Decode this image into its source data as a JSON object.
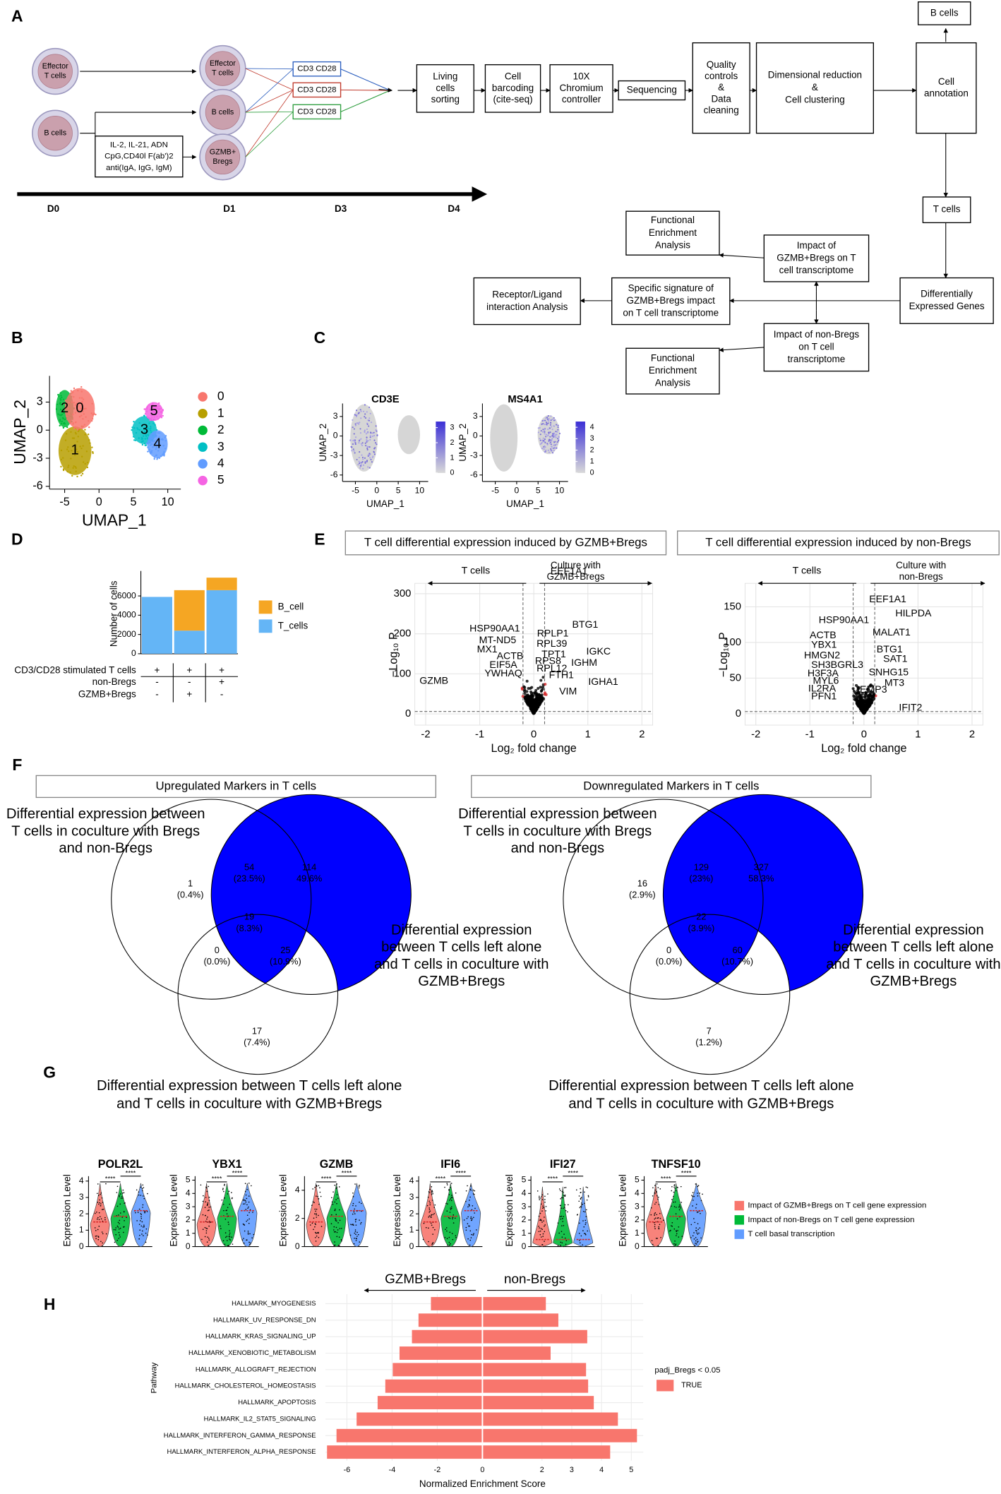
{
  "panel_labels": [
    "A",
    "B",
    "C",
    "D",
    "E",
    "F",
    "G",
    "H"
  ],
  "panel_a": {
    "cells": [
      [
        "Effector",
        "T cells"
      ],
      [
        "B cells"
      ],
      [
        "Effector",
        "T cells"
      ],
      [
        "B cells"
      ],
      [
        "GZMB+",
        "Bregs"
      ]
    ],
    "stimulation": [
      "IL-2, IL-21, ADN",
      "CpG,CD40l F(ab')2",
      "anti(IgA, IgG, IgM)"
    ],
    "cd_boxes": [
      "CD3 CD28",
      "CD3 CD28",
      "CD3 CD28"
    ],
    "timeline": [
      "D0",
      "D1",
      "D3",
      "D4"
    ],
    "steps": [
      [
        "Living",
        "cells",
        "sorting"
      ],
      [
        "Cell",
        "barcoding",
        "(cite-seq)"
      ],
      [
        "10X",
        "Chromium",
        "controller"
      ],
      [
        "Sequencing"
      ],
      [
        "Quality",
        "controls",
        "&",
        "Data",
        "cleaning"
      ],
      [
        "Dimensional reduction",
        "&",
        "Cell clustering"
      ],
      [
        "Cell",
        "annotation"
      ]
    ],
    "b_cells": "B cells",
    "t_cells": "T cells",
    "deg": [
      "Differentially",
      "Expressed Genes"
    ],
    "impact_gzmb": [
      "Impact of",
      "GZMB+Bregs on T",
      "cell transcriptome"
    ],
    "impact_non": [
      "Impact of non-Bregs",
      "on T cell",
      "transcriptome"
    ],
    "signature": [
      "Specific signature of",
      "GZMB+Bregs impact",
      "on T cell transcriptome"
    ],
    "receptor": [
      "Receptor/Ligand",
      "interaction Analysis"
    ],
    "functional": [
      [
        "Functional",
        "Enrichment",
        "Analysis"
      ],
      [
        "Functional",
        "Enrichment",
        "Analysis"
      ]
    ]
  },
  "panel_b": {
    "xlabel": "UMAP_1",
    "ylabel": "UMAP_2",
    "xlim": [
      -7.2,
      11.9
    ],
    "ylim": [
      -6.3,
      5.8
    ],
    "xticks": [
      -5,
      0,
      5,
      10
    ],
    "yticks": [
      -6,
      -3,
      0,
      3
    ],
    "clusters": [
      "0",
      "1",
      "2",
      "3",
      "4",
      "5"
    ],
    "colors": [
      "#F8766D",
      "#B79F00",
      "#00BA38",
      "#00BFC4",
      "#619CFF",
      "#F564E3"
    ]
  },
  "panel_c": {
    "xlabel": "UMAP_1",
    "ylabel": "UMAP_2",
    "xlim": [
      -8,
      12
    ],
    "ylim": [
      -7,
      5
    ],
    "xticks": [
      -5,
      0,
      5,
      10
    ],
    "yticks": [
      -6,
      -3,
      0,
      3
    ],
    "features": [
      {
        "name": "CD3E",
        "clim": [
          0,
          3.4
        ],
        "cticks": [
          0,
          1,
          2,
          3
        ]
      },
      {
        "name": "MS4A1",
        "clim": [
          0,
          4.5
        ],
        "cticks": [
          0,
          1,
          2,
          3,
          4
        ]
      }
    ]
  },
  "panel_d": {
    "type": "bar",
    "ylabel": "Number of cells",
    "ylim": [
      0,
      8200
    ],
    "yticks": [
      0,
      2000,
      4000,
      6000
    ],
    "series": [
      {
        "name": "B_cell",
        "color": "#F5A623",
        "values": [
          0,
          4200,
          1300
        ]
      },
      {
        "name": "T_cells",
        "color": "#64B5F6",
        "values": [
          5900,
          2400,
          6600
        ]
      }
    ],
    "conditions": [
      "CD3/CD28 stimulated T cells",
      "non-Bregs",
      "GZMB+Bregs"
    ],
    "signs": [
      [
        "+",
        "+",
        "+"
      ],
      [
        "-",
        "-",
        "+"
      ],
      [
        "-",
        "+",
        "-"
      ]
    ]
  },
  "panel_e": {
    "ylabel": "−Log₁₀ P",
    "xlabel": "Log₂ fold change",
    "plots": [
      {
        "title": "T cell differential expression induced by GZMB+Bregs",
        "left": "T cells",
        "right": [
          "Culture with",
          "GZMB+Bregs"
        ],
        "xlim": [
          -2.2,
          2.2
        ],
        "xticks": [
          -2,
          -1,
          0,
          1,
          2
        ],
        "ylim": [
          -28,
          326
        ],
        "yticks": [
          0,
          100,
          200,
          300
        ],
        "genes": [
          "EEF1A1",
          "BTG1",
          "HSP90AA1",
          "RPLP1",
          "MT-ND5",
          "RPL39",
          "IGKC",
          "MX1",
          "TPT1",
          "GZMB",
          "ACTB",
          "RPS8",
          "IGHM",
          "RPL12",
          "EIF5A",
          "YWHAQ",
          "FTH1",
          "IGHA1",
          "VIM"
        ]
      },
      {
        "title": "T cell differential expression induced by non-Bregs",
        "left": "T cells",
        "right": [
          "Culture with",
          "non-Bregs"
        ],
        "xlim": [
          -2.2,
          2.2
        ],
        "xticks": [
          -2,
          -1,
          0,
          1,
          2
        ],
        "ylim": [
          -16,
          183
        ],
        "yticks": [
          0,
          50,
          100,
          150
        ],
        "genes": [
          "EEF1A1",
          "HILPDA",
          "HSP90AA1",
          "MALAT1",
          "ACTB",
          "YBX1",
          "BTG1",
          "HMGN2",
          "SAT1",
          "SH3BGRL3",
          "SNHG15",
          "H3F3A",
          "MT3",
          "MYL6",
          "IL2RA",
          "EMP3",
          "PFN1",
          "IFIT2"
        ]
      }
    ]
  },
  "panel_f": {
    "venns": [
      {
        "title": "Upregulated Markers in T cells",
        "regions": [
          {
            "count": 1,
            "percent": "(0.4%)"
          },
          {
            "count": 54,
            "percent": "(23.5%)"
          },
          {
            "count": 114,
            "percent": "49.6%"
          },
          {
            "count": 19,
            "percent": "(8.3%)"
          },
          {
            "count": 0,
            "percent": "(0.0%)"
          },
          {
            "count": 25,
            "percent": "(10.9%)"
          },
          {
            "count": 17,
            "percent": "(7.4%)"
          }
        ]
      },
      {
        "title": "Downregulated Markers in T cells",
        "regions": [
          {
            "count": 16,
            "percent": "(2.9%)"
          },
          {
            "count": 129,
            "percent": "(23%)"
          },
          {
            "count": 327,
            "percent": "58.3%"
          },
          {
            "count": 22,
            "percent": "(3.9%)"
          },
          {
            "count": 0,
            "percent": "(0.0%)"
          },
          {
            "count": 60,
            "percent": "(10.7%)"
          },
          {
            "count": 7,
            "percent": "(1.2%)"
          }
        ]
      }
    ],
    "set_a": [
      "Differential expression between",
      "T cells in coculture with Bregs",
      "and non-Bregs"
    ],
    "set_b": [
      "Differential expression",
      "between T cells left alone",
      "and T cells in coculture with",
      "GZMB+Bregs"
    ],
    "set_c": [
      "Differential expression between T cells left alone",
      "and T cells in coculture with GZMB+Bregs"
    ]
  },
  "panel_g": {
    "ylabel": "Expression Level",
    "significance": "****",
    "plots": [
      {
        "gene": "POLR2L",
        "ylim": [
          0,
          4.3
        ],
        "yticks": [
          0,
          1,
          2,
          3,
          4
        ]
      },
      {
        "gene": "YBX1",
        "ylim": [
          0,
          5.3
        ],
        "yticks": [
          0,
          1,
          2,
          3,
          4,
          5
        ]
      },
      {
        "gene": "GZMB",
        "ylim": [
          0,
          5
        ],
        "yticks": [
          0,
          2,
          4
        ]
      },
      {
        "gene": "IFI6",
        "ylim": [
          0,
          4.3
        ],
        "yticks": [
          0,
          1,
          2,
          3,
          4
        ]
      },
      {
        "gene": "IFI27",
        "ylim": [
          0,
          5.3
        ],
        "yticks": [
          0,
          1,
          2,
          3,
          4,
          5
        ]
      },
      {
        "gene": "TNFSF10",
        "ylim": [
          0,
          5.3
        ],
        "yticks": [
          0,
          1,
          2,
          3,
          4,
          5
        ]
      }
    ],
    "legend": [
      {
        "name": "Impact of GZMB+Bregs on T cell gene expression",
        "color": "#F8766D"
      },
      {
        "name": "Impact of non-Bregs on T cell gene expression",
        "color": "#00BA38"
      },
      {
        "name": "T cell basal transcription",
        "color": "#619CFF"
      }
    ]
  },
  "panel_h": {
    "type": "bar",
    "ylabel": "Pathway",
    "xlabel": "Normalized Enrichment Score",
    "color": "#F8766D",
    "categories": [
      "HALLMARK_MYOGENESIS",
      "HALLMARK_UV_RESPONSE_DN",
      "HALLMARK_KRAS_SIGNALING_UP",
      "HALLMARK_XENOBIOTIC_METABOLISM",
      "HALLMARK_ALLOGRAFT_REJECTION",
      "HALLMARK_CHOLESTEROL_HOMEOSTASIS",
      "HALLMARK_APOPTOSIS",
      "HALLMARK_IL2_STAT5_SIGNALING",
      "HALLMARK_INTERFERON_GAMMA_RESPONSE",
      "HALLMARK_INTERFERON_ALPHA_RESPONSE"
    ],
    "left": {
      "name": "GZMB+Bregs",
      "xlim": [
        -6.95,
        0
      ],
      "xticks": [
        -6,
        -4,
        -2,
        0
      ],
      "values": [
        -2.28,
        -2.83,
        -3.12,
        -3.67,
        -3.97,
        -4.3,
        -4.64,
        -5.57,
        -6.46,
        -6.88
      ]
    },
    "right": {
      "name": "non-Bregs",
      "xlim": [
        0,
        5.4
      ],
      "xticks": [
        2,
        3,
        4,
        5
      ],
      "values": [
        2.13,
        2.55,
        3.52,
        2.29,
        3.48,
        3.55,
        3.74,
        4.55,
        5.19,
        4.29
      ]
    },
    "legend_title": "padj_Bregs < 0.05",
    "legend_label": "TRUE"
  }
}
